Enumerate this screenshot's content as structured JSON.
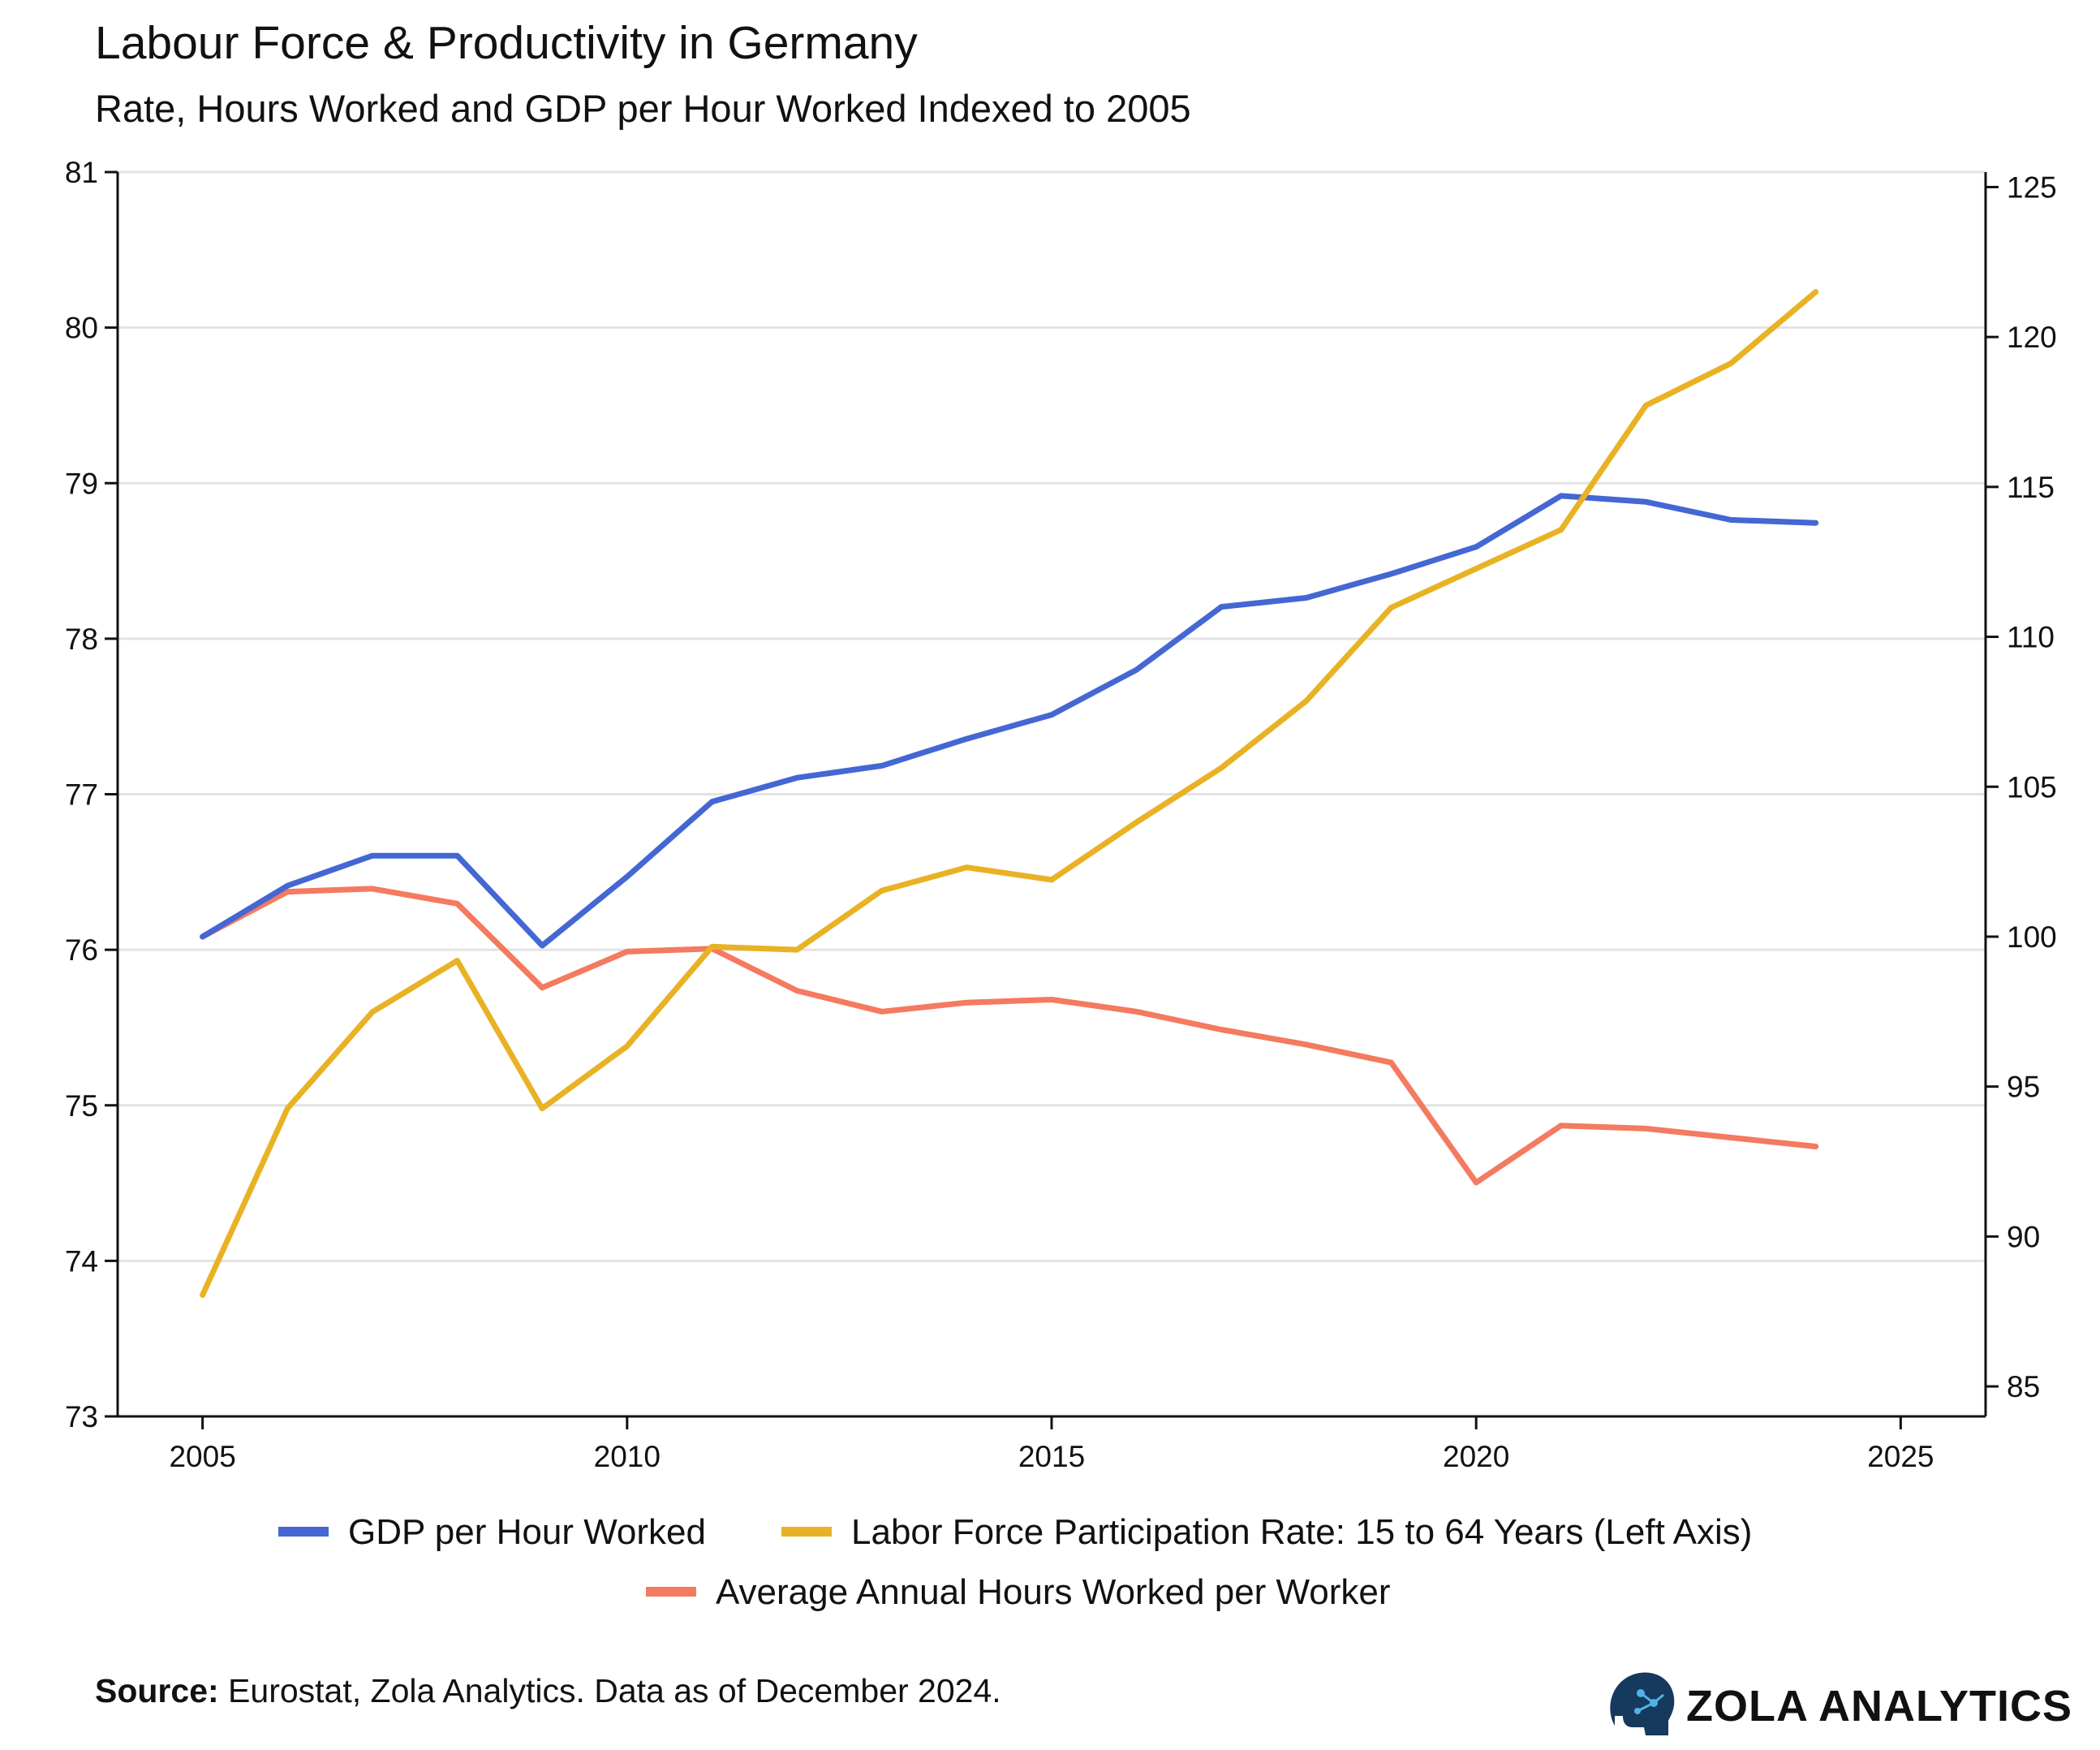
{
  "header": {
    "title": "Labour Force & Productivity in Germany",
    "subtitle": "Rate, Hours Worked and GDP per Hour Worked Indexed to 2005"
  },
  "footer": {
    "source_label": "Source:",
    "source_text": " Eurostat, Zola Analytics. Data as of December 2024.",
    "brand": "ZOLA ANALYTICS",
    "brand_icon": "head-circuit-icon"
  },
  "chart_data": {
    "type": "line",
    "title": "Labour Force & Productivity in Germany",
    "subtitle": "Rate, Hours Worked and GDP per Hour Worked Indexed to 2005",
    "xlabel": "",
    "xlim": [
      2004,
      2026
    ],
    "x_ticks": [
      2005,
      2010,
      2015,
      2020,
      2025
    ],
    "y_left": {
      "label": "",
      "lim": [
        73,
        81
      ],
      "ticks": [
        73,
        74,
        75,
        76,
        77,
        78,
        79,
        80,
        81
      ]
    },
    "y_right": {
      "label": "",
      "lim": [
        84,
        125.5
      ],
      "ticks": [
        85,
        90,
        95,
        100,
        105,
        110,
        115,
        120,
        125
      ]
    },
    "grid": "horizontal",
    "legend_position": "bottom",
    "x": [
      2005,
      2006,
      2007,
      2008,
      2009,
      2010,
      2011,
      2012,
      2013,
      2014,
      2015,
      2016,
      2017,
      2018,
      2019,
      2020,
      2021,
      2022,
      2023,
      2024
    ],
    "series": [
      {
        "name": "GDP per Hour Worked",
        "axis": "right",
        "color": "#4467d3",
        "values": [
          100.0,
          101.7,
          102.7,
          102.7,
          99.7,
          102.0,
          104.5,
          105.3,
          105.7,
          106.6,
          107.4,
          108.9,
          111.0,
          111.3,
          112.1,
          113.0,
          114.7,
          114.5,
          113.9,
          113.8
        ]
      },
      {
        "name": "Labor Force Participation Rate: 15 to 64 Years (Left Axis)",
        "axis": "left",
        "color": "#e9b225",
        "values": [
          73.78,
          74.98,
          75.6,
          75.93,
          74.98,
          75.38,
          76.02,
          76.0,
          76.38,
          76.53,
          76.45,
          76.82,
          77.17,
          77.6,
          78.2,
          78.45,
          78.7,
          79.5,
          79.77,
          80.23
        ]
      },
      {
        "name": "Average Annual Hours Worked per Worker",
        "axis": "right",
        "color": "#f47a60",
        "values": [
          100.0,
          101.5,
          101.6,
          101.1,
          98.3,
          99.5,
          99.6,
          98.2,
          97.5,
          97.8,
          97.9,
          97.5,
          96.9,
          96.4,
          95.8,
          91.8,
          93.7,
          93.6,
          93.3,
          93.0
        ]
      }
    ]
  }
}
